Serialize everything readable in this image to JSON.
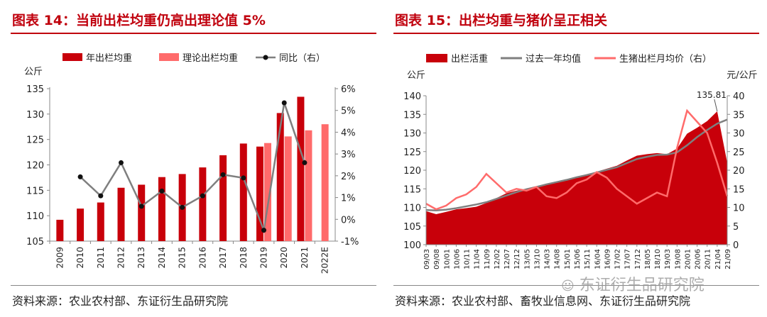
{
  "left": {
    "figure_title": "图表 14：当前出栏均重仍高出理论值 5%",
    "source": "资料来源：农业农村部、东证衍生品研究院"
  },
  "right": {
    "figure_title": "图表 15：出栏均重与猪价呈正相关",
    "source": "资料来源：农业农村部、畜牧业信息网、东证衍生品研究院",
    "peak_annotation": "135.81"
  },
  "watermark": "东证衍生品研究院",
  "colors": {
    "dark_red": "#c8000a",
    "light_red": "#ff6b6b",
    "gray": "#7f7f7f",
    "title_red": "#c0000d"
  },
  "chart_data": [
    {
      "type": "bar",
      "ylabel": "公斤",
      "ylim": [
        105,
        135
      ],
      "yticks": [
        "135",
        "130",
        "125",
        "120",
        "115",
        "110",
        "105"
      ],
      "y2lim": [
        -1,
        6
      ],
      "y2ticks": [
        "6%",
        "5%",
        "4%",
        "3%",
        "2%",
        "1%",
        "0%",
        "-1%"
      ],
      "categories": [
        "2009",
        "2010",
        "2011",
        "2012",
        "2013",
        "2014",
        "2015",
        "2016",
        "2017",
        "2018",
        "2019",
        "2020",
        "2021",
        "2022E"
      ],
      "series": [
        {
          "name": "年出栏均重",
          "type": "bar",
          "values": [
            109.2,
            111.4,
            112.6,
            115.5,
            116.1,
            117.6,
            118.2,
            119.5,
            121.9,
            124.2,
            123.6,
            130.2,
            133.4,
            null
          ]
        },
        {
          "name": "理论出栏均重",
          "type": "bar",
          "values": [
            null,
            null,
            null,
            null,
            null,
            null,
            null,
            null,
            null,
            null,
            124.3,
            125.6,
            126.8,
            128.0
          ]
        },
        {
          "name": "同比（右）",
          "type": "line",
          "axis": "right",
          "values": [
            null,
            1.95,
            1.08,
            2.6,
            0.6,
            1.3,
            0.55,
            1.08,
            2.05,
            1.9,
            -0.5,
            5.35,
            2.6,
            null
          ]
        }
      ]
    },
    {
      "type": "area",
      "ylabel": "公斤",
      "y2label": "元/公斤",
      "ylim": [
        100,
        140
      ],
      "yticks": [
        "140",
        "135",
        "130",
        "125",
        "120",
        "115",
        "110",
        "105",
        "100"
      ],
      "y2lim": [
        0,
        40
      ],
      "y2ticks": [
        "40",
        "35",
        "30",
        "25",
        "20",
        "15",
        "10",
        "5",
        "0"
      ],
      "xticks": [
        "09/03",
        "09/08",
        "10/01",
        "10/06",
        "10/11",
        "11/04",
        "11/09",
        "12/02",
        "12/07",
        "12/12",
        "13/05",
        "13/10",
        "14/03",
        "14/08",
        "15/01",
        "15/06",
        "15/11",
        "16/04",
        "16/09",
        "17/02",
        "17/07",
        "17/12",
        "18/05",
        "18/10",
        "19/03",
        "19/08",
        "20/01",
        "20/06",
        "20/11",
        "21/04",
        "21/09"
      ],
      "series": [
        {
          "name": "出栏活重",
          "type": "area",
          "values": [
            109,
            108.2,
            108.8,
            109.5,
            109.8,
            110.2,
            111.2,
            112.5,
            113.8,
            114.5,
            115,
            115.4,
            116.2,
            116.8,
            117.6,
            118.2,
            118.9,
            119.6,
            120.4,
            121.2,
            122.6,
            123.9,
            124.3,
            124.6,
            124.3,
            125.8,
            129.8,
            131.4,
            133.2,
            135.81,
            122
          ]
        },
        {
          "name": "过去一年均值",
          "type": "line",
          "values": [
            109.3,
            109.2,
            109.4,
            109.8,
            110.3,
            110.8,
            111.4,
            112.3,
            113.2,
            114.1,
            114.9,
            115.5,
            116.2,
            116.8,
            117.4,
            118.1,
            118.7,
            119.4,
            120.1,
            120.8,
            121.9,
            123,
            123.6,
            124.1,
            124.2,
            124.8,
            126.7,
            128.9,
            130.8,
            132.5,
            133.6
          ]
        },
        {
          "name": "生猪出栏月均价（右）",
          "type": "line",
          "axis": "right",
          "values": [
            11,
            9.5,
            10.5,
            12.5,
            13.5,
            15.5,
            19,
            16.5,
            14,
            15,
            14.5,
            15.5,
            13,
            12.5,
            14,
            16.5,
            17.5,
            19.5,
            18,
            15,
            13,
            11,
            12.5,
            14,
            13,
            26,
            36,
            33,
            30,
            22,
            13
          ]
        }
      ]
    }
  ]
}
